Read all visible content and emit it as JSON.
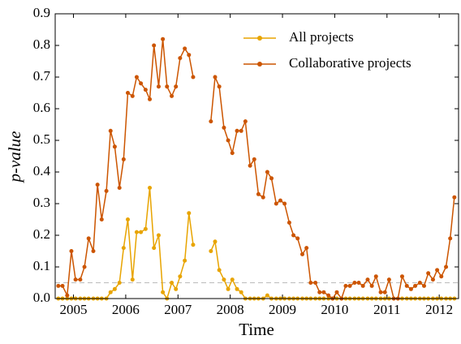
{
  "chart_data": {
    "type": "line",
    "xlabel": "Time",
    "ylabel": "p-value",
    "xlim": [
      2004.65,
      2012.37
    ],
    "ylim": [
      0,
      0.9
    ],
    "xticks": [
      2005,
      2006,
      2007,
      2008,
      2009,
      2010,
      2011,
      2012
    ],
    "yticks": [
      {
        "value": 0,
        "label": "0.0"
      },
      0.1,
      0.2,
      0.3,
      0.4,
      0.5,
      0.6,
      0.7,
      0.8,
      0.9
    ],
    "hline": 0.05,
    "legend": "upper right",
    "x": [
      2004.71,
      2004.79,
      2004.88,
      2004.96,
      2005.04,
      2005.13,
      2005.21,
      2005.29,
      2005.38,
      2005.46,
      2005.54,
      2005.63,
      2005.71,
      2005.79,
      2005.88,
      2005.96,
      2006.04,
      2006.13,
      2006.21,
      2006.29,
      2006.38,
      2006.46,
      2006.54,
      2006.63,
      2006.71,
      2006.79,
      2006.88,
      2006.96,
      2007.04,
      2007.13,
      2007.21,
      2007.29,
      2007.38,
      2007.46,
      2007.54,
      2007.63,
      2007.71,
      2007.79,
      2007.88,
      2007.96,
      2008.04,
      2008.13,
      2008.21,
      2008.29,
      2008.38,
      2008.46,
      2008.54,
      2008.63,
      2008.71,
      2008.79,
      2008.88,
      2008.96,
      2009.04,
      2009.13,
      2009.21,
      2009.29,
      2009.38,
      2009.46,
      2009.54,
      2009.63,
      2009.71,
      2009.79,
      2009.88,
      2009.96,
      2010.04,
      2010.13,
      2010.21,
      2010.29,
      2010.38,
      2010.46,
      2010.54,
      2010.63,
      2010.71,
      2010.79,
      2010.88,
      2010.96,
      2011.04,
      2011.13,
      2011.21,
      2011.29,
      2011.38,
      2011.46,
      2011.54,
      2011.63,
      2011.71,
      2011.79,
      2011.88,
      2011.96,
      2012.04,
      2012.13,
      2012.21,
      2012.29
    ],
    "series": [
      {
        "name": "All projects",
        "color": "#e8a400",
        "values": [
          0,
          0,
          0,
          0,
          0,
          0,
          0,
          0,
          0,
          0,
          0,
          0,
          0.02,
          0.03,
          0.05,
          0.16,
          0.25,
          0.06,
          0.21,
          0.21,
          0.22,
          0.35,
          0.16,
          0.2,
          0.02,
          0,
          0.05,
          0.03,
          0.07,
          0.12,
          0.27,
          0.17,
          null,
          null,
          null,
          0.15,
          0.18,
          0.09,
          0.06,
          0.03,
          0.06,
          0.03,
          0.02,
          0,
          0,
          0,
          0,
          0,
          0.01,
          0,
          0,
          0,
          0,
          0,
          0,
          0,
          0,
          0,
          0,
          0,
          0,
          0,
          0,
          0,
          0,
          0,
          0,
          0,
          0,
          0,
          0,
          0,
          0,
          0,
          0,
          0,
          0,
          0,
          0,
          0,
          0,
          0,
          0,
          0,
          0,
          0,
          0,
          0,
          0,
          0,
          0,
          0
        ]
      },
      {
        "name": "Collaborative projects",
        "color": "#cc5500",
        "values": [
          0.04,
          0.04,
          0.01,
          0.15,
          0.06,
          0.06,
          0.1,
          0.19,
          0.15,
          0.36,
          0.25,
          0.34,
          0.53,
          0.48,
          0.35,
          0.44,
          0.65,
          0.64,
          0.7,
          0.68,
          0.66,
          0.63,
          0.8,
          0.67,
          0.82,
          0.67,
          0.64,
          0.67,
          0.76,
          0.79,
          0.77,
          0.7,
          null,
          null,
          null,
          0.56,
          0.7,
          0.67,
          0.54,
          0.5,
          0.46,
          0.53,
          0.53,
          0.56,
          0.42,
          0.44,
          0.33,
          0.32,
          0.4,
          0.38,
          0.3,
          0.31,
          0.3,
          0.24,
          0.2,
          0.19,
          0.14,
          0.16,
          0.05,
          0.05,
          0.02,
          0.02,
          0.01,
          0,
          0.02,
          0,
          0.04,
          0.04,
          0.05,
          0.05,
          0.04,
          0.06,
          0.04,
          0.07,
          0.02,
          0.02,
          0.06,
          0,
          0,
          0.07,
          0.04,
          0.03,
          0.04,
          0.05,
          0.04,
          0.08,
          0.06,
          0.09,
          0.07,
          0.1,
          0.19,
          0.32
        ]
      }
    ]
  }
}
